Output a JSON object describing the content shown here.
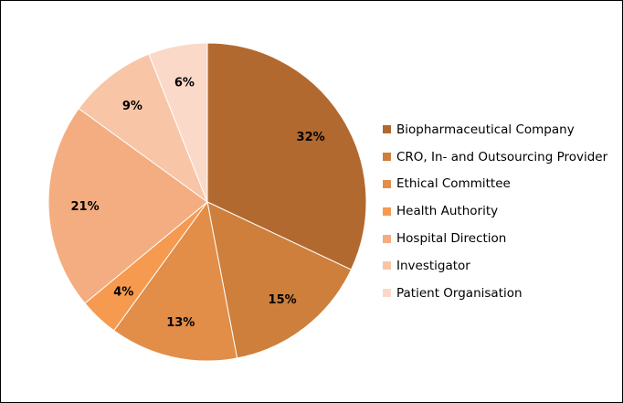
{
  "chart_data": {
    "type": "pie",
    "categories": [
      "Biopharmaceutical Company",
      "CRO, In- and Outsourcing Provider",
      "Ethical Committee",
      "Health Authority",
      "Hospital Direction",
      "Investigator",
      "Patient Organisation"
    ],
    "values": [
      32,
      15,
      13,
      4,
      21,
      9,
      6
    ],
    "labels": [
      "32%",
      "15%",
      "13%",
      "4%",
      "21%",
      "9%",
      "6%"
    ],
    "colors": [
      "#b2692f",
      "#cd7f3b",
      "#e28d48",
      "#f69a50",
      "#f4ad80",
      "#f8c5a6",
      "#fbd9c8"
    ],
    "legend_position": "right",
    "title": ""
  }
}
